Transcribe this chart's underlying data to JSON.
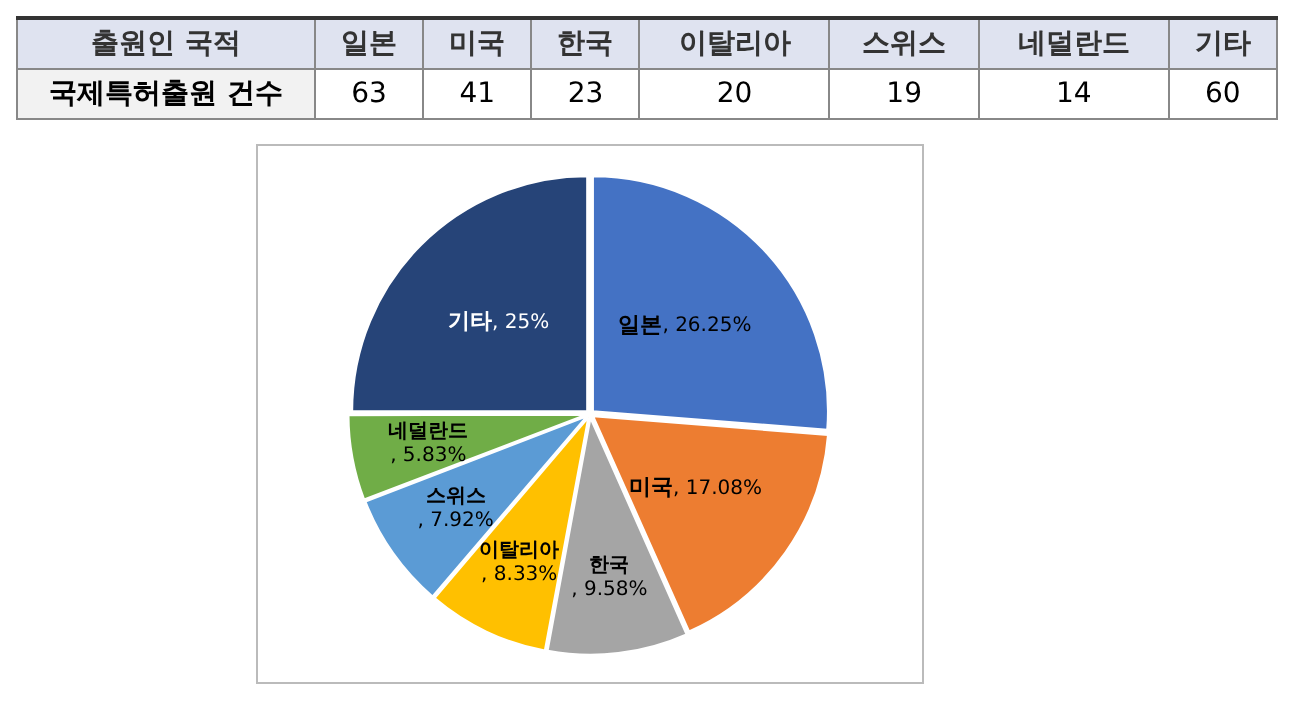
{
  "chart_data": [
    {
      "type": "other",
      "annotations": [
        "출원인 국적",
        "국제특허출원 건수"
      ],
      "categories": [
        "일본",
        "미국",
        "한국",
        "이탈리아",
        "스위스",
        "네덜란드",
        "기타"
      ],
      "values": [
        63,
        41,
        23,
        20,
        19,
        14,
        60
      ],
      "data_labels": true
    },
    {
      "type": "pie",
      "categories": [
        "일본",
        "미국",
        "한국",
        "이탈리아",
        "스위스",
        "네덜란드",
        "기타"
      ],
      "legend": false,
      "values": [
        26.25,
        17.08,
        9.58,
        8.33,
        7.92,
        5.83,
        25
      ],
      "value_labels": [
        ", 26.25%",
        ", 17.08%",
        ", 9.58%",
        ", 8.33%",
        ", 7.92%",
        ", 5.83%",
        ", 25%"
      ],
      "colors": [
        "#4472c4",
        "#ed7d31",
        "#a5a5a5",
        "#ffc000",
        "#5b9bd5",
        "#70ad47",
        "#264478"
      ]
    }
  ]
}
